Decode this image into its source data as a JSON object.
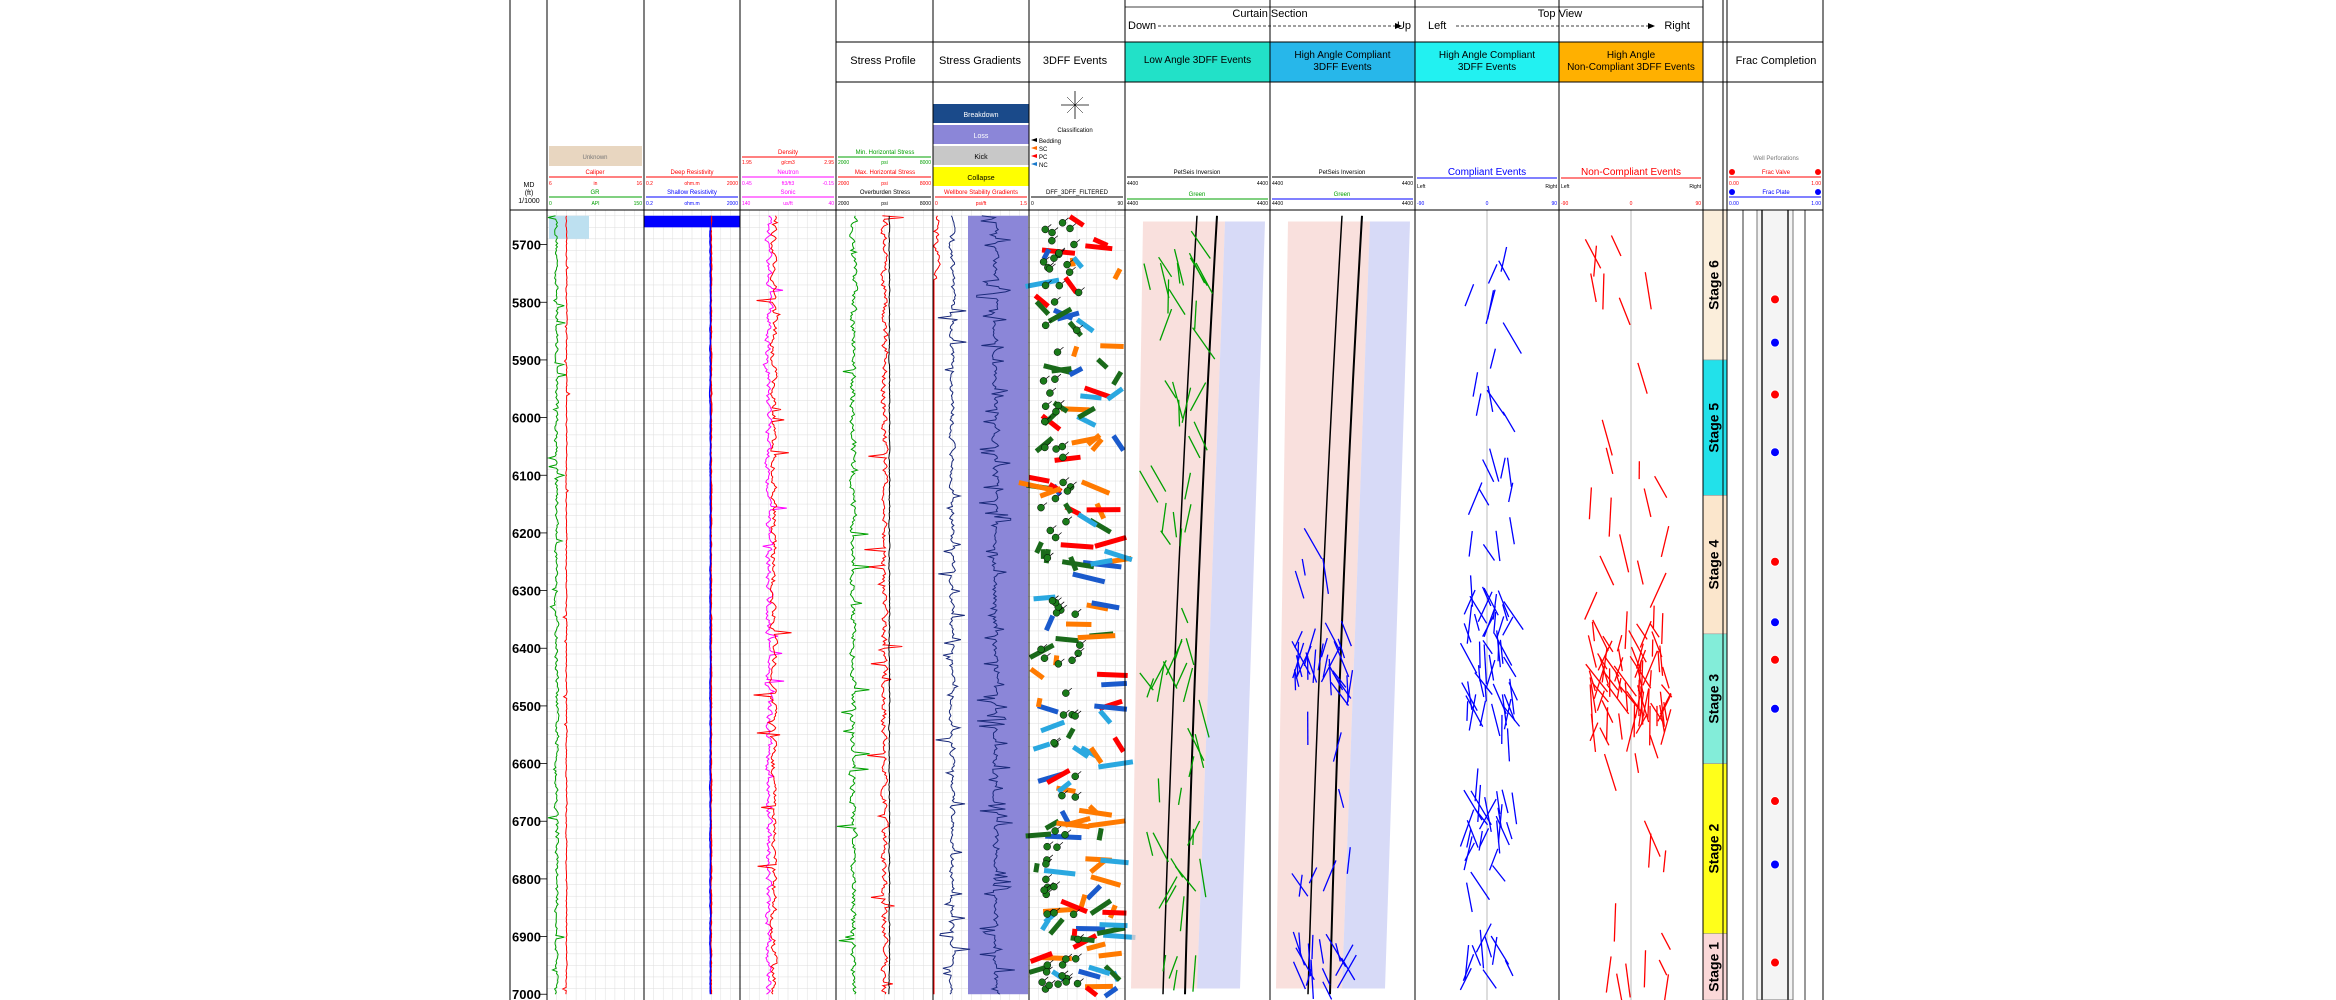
{
  "chart_data": {
    "type": "well-log",
    "depth": {
      "header": "MD",
      "unit": "(ft)",
      "scale": "1/1000",
      "min": 5640,
      "max": 7000,
      "ticks": [
        5700,
        5800,
        5900,
        6000,
        6100,
        6200,
        6300,
        6400,
        6500,
        6600,
        6700,
        6800,
        6900,
        7000
      ]
    },
    "groups": {
      "curtain_title": "Curtain Section",
      "curtain_left": "Down",
      "curtain_right": "Up",
      "top_title": "Top View",
      "top_left": "Left",
      "top_right": "Right"
    },
    "tracks": {
      "stress_profile": "Stress Profile",
      "stress_gradients": "Stress Gradients",
      "events_3dff": "3DFF Events",
      "low_angle": "Low Angle 3DFF Events",
      "high_compliant": "High Angle Compliant 3DFF Events",
      "top_compliant": "High Angle Compliant 3DFF Events",
      "top_noncompliant": "High Angle Non-Compliant 3DFF Events",
      "frac": "Frac Completion"
    },
    "curves": {
      "unknown": "Unknown",
      "caliper": "Caliper",
      "gr": "GR",
      "deep_res": "Deep Resistivity",
      "shallow_res": "Shallow Resistivity",
      "density": "Density",
      "neutron": "Neutron",
      "sonic": "Sonic",
      "min_stress": "Min. Horizontal Stress",
      "max_stress": "Max. Horizontal Stress",
      "overburden": "Overburden Stress",
      "wellbore_stab": "Wellbore Stability Gradients",
      "petrel_inv_1": "PetSeis Inversion",
      "petrel_inv_2": "PetSeis Inversion",
      "compliant_events": "Compliant Events",
      "noncompliant_events": "Non-Compliant Events",
      "frac_valve": "Frac Valve",
      "frac_plate": "Frac Plate"
    },
    "stability_legend": [
      "Breakdown",
      "Loss",
      "Kick",
      "Collapse"
    ],
    "classification": "Classification",
    "class_items": [
      "Bedding",
      "SC",
      "PC",
      "NC"
    ],
    "dff_curve_label": "DFF_3DFF_FILTERED",
    "stages": [
      {
        "label": "Stage 6",
        "top": 5640,
        "bottom": 5900,
        "color": "#fbeedb"
      },
      {
        "label": "Stage 5",
        "top": 5900,
        "bottom": 6135,
        "color": "#22e1ea"
      },
      {
        "label": "Stage 4",
        "top": 6135,
        "bottom": 6375,
        "color": "#fbe6cc"
      },
      {
        "label": "Stage 3",
        "top": 6375,
        "bottom": 6600,
        "color": "#83edd9"
      },
      {
        "label": "Stage 2",
        "top": 6600,
        "bottom": 6895,
        "color": "#ffff1a"
      },
      {
        "label": "Stage 1",
        "top": 6895,
        "bottom": 7010,
        "color": "#fbd8d8"
      }
    ],
    "frac_markers": [
      {
        "depth": 5795,
        "kind": "valve"
      },
      {
        "depth": 5870,
        "kind": "plate"
      },
      {
        "depth": 5960,
        "kind": "valve"
      },
      {
        "depth": 6060,
        "kind": "plate"
      },
      {
        "depth": 6250,
        "kind": "valve"
      },
      {
        "depth": 6355,
        "kind": "plate"
      },
      {
        "depth": 6420,
        "kind": "valve"
      },
      {
        "depth": 6505,
        "kind": "plate"
      },
      {
        "depth": 6665,
        "kind": "valve"
      },
      {
        "depth": 6775,
        "kind": "plate"
      },
      {
        "depth": 6945,
        "kind": "valve"
      }
    ],
    "colors": {
      "green": "#00a000",
      "red": "#ff0000",
      "blue": "#0000ff",
      "magenta": "#ff00ff",
      "purple": "#8b86d8",
      "navy": "#1a2a7a",
      "cyan_header": "#27b7ea",
      "lowangle_header": "#22e1c8",
      "compliant_header": "#22f1f1",
      "noncompliant_header": "#ffb000"
    }
  }
}
